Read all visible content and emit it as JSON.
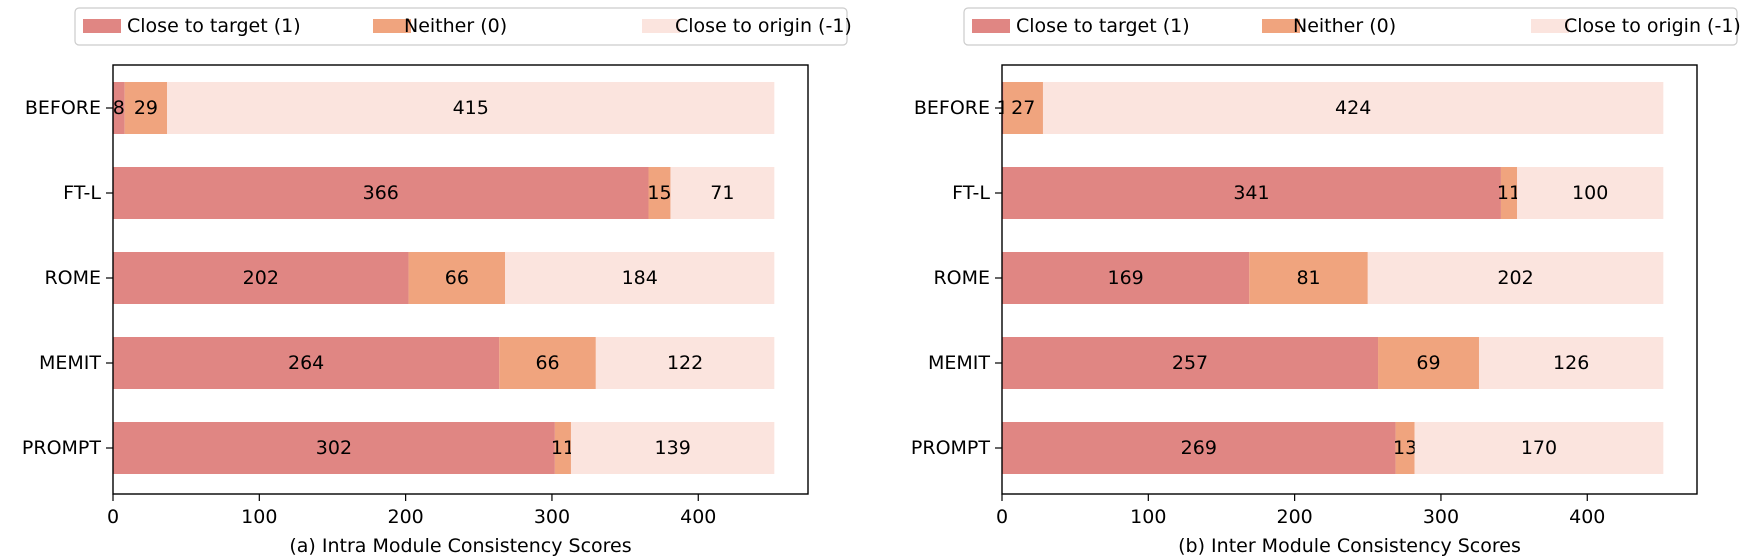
{
  "chart_data": [
    {
      "type": "bar",
      "orientation": "horizontal",
      "stacked": true,
      "title": "(a) Intra Module Consistency Scores",
      "categories": [
        "BEFORE",
        "FT-L",
        "ROME",
        "MEMIT",
        "PROMPT"
      ],
      "series": [
        {
          "name": "Close to target (1)",
          "color": "#e08683",
          "values": [
            8,
            366,
            202,
            264,
            302
          ]
        },
        {
          "name": "Neither (0)",
          "color": "#f0a47e",
          "values": [
            29,
            15,
            66,
            66,
            11
          ]
        },
        {
          "name": "Close to origin (-1)",
          "color": "#fbe4de",
          "values": [
            415,
            71,
            184,
            122,
            139
          ]
        }
      ],
      "xlim": [
        0,
        475
      ],
      "xticks": [
        0,
        100,
        200,
        300,
        400
      ],
      "legend": "top",
      "grid": false
    },
    {
      "type": "bar",
      "orientation": "horizontal",
      "stacked": true,
      "title": "(b) Inter Module Consistency Scores",
      "categories": [
        "BEFORE",
        "FT-L",
        "ROME",
        "MEMIT",
        "PROMPT"
      ],
      "series": [
        {
          "name": "Close to target (1)",
          "color": "#e08683",
          "values": [
            1,
            341,
            169,
            257,
            269
          ]
        },
        {
          "name": "Neither (0)",
          "color": "#f0a47e",
          "values": [
            27,
            11,
            81,
            69,
            13
          ]
        },
        {
          "name": "Close to origin (-1)",
          "color": "#fbe4de",
          "values": [
            424,
            100,
            202,
            126,
            170
          ]
        }
      ],
      "xlim": [
        0,
        475
      ],
      "xticks": [
        0,
        100,
        200,
        300,
        400
      ],
      "legend": "top",
      "grid": false
    }
  ]
}
